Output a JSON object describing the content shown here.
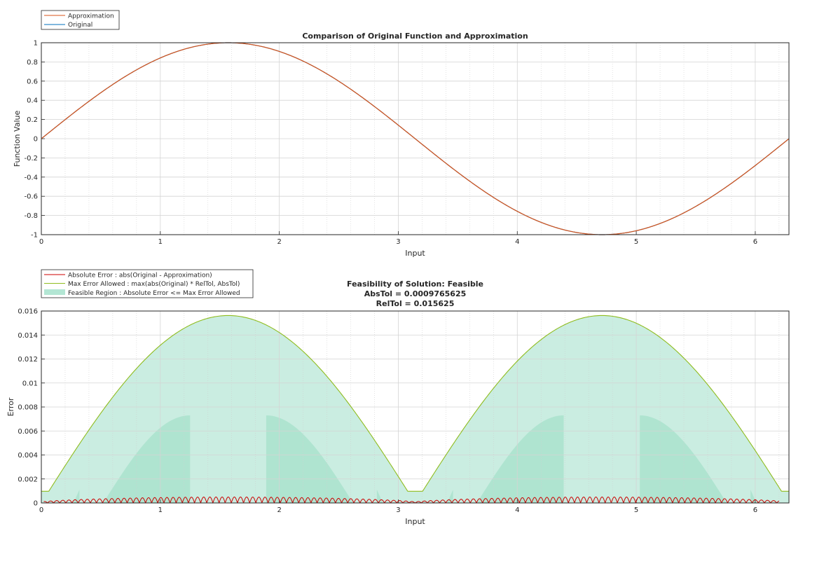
{
  "chart_data": [
    {
      "type": "line",
      "title": "Comparison of Original Function and Approximation",
      "xlabel": "Input",
      "ylabel": "Function Value",
      "xlim": [
        0,
        6.2832
      ],
      "ylim": [
        -1,
        1
      ],
      "xticks": [
        "0",
        "1",
        "2",
        "3",
        "4",
        "5",
        "6"
      ],
      "yticks": [
        "1",
        "0.8",
        "0.6",
        "0.4",
        "0.2",
        "0",
        "-0.2",
        "-0.4",
        "-0.6",
        "-0.8",
        "-1"
      ],
      "grid": true,
      "legend_position": "outside-top-left",
      "series": [
        {
          "name": "Approximation",
          "color": "#d95319",
          "function": "sin(x)",
          "x_range": [
            0,
            6.2832
          ]
        },
        {
          "name": "Original",
          "color": "#0072bd",
          "function": "sin(x)",
          "x_range": [
            0,
            6.2832
          ]
        }
      ]
    },
    {
      "type": "area",
      "title_lines": [
        "Feasibility of Solution: Feasible",
        "AbsTol = 0.0009765625",
        "RelTol = 0.015625"
      ],
      "xlabel": "Input",
      "ylabel": "Error",
      "xlim": [
        0,
        6.2832
      ],
      "ylim": [
        0,
        0.016
      ],
      "xticks": [
        "0",
        "1",
        "2",
        "3",
        "4",
        "5",
        "6"
      ],
      "yticks": [
        "0.016",
        "0.014",
        "0.012",
        "0.01",
        "0.008",
        "0.006",
        "0.004",
        "0.002",
        "0"
      ],
      "grid": true,
      "legend_position": "outside-top-left",
      "abs_tol": 0.0009765625,
      "rel_tol": 0.015625,
      "series": [
        {
          "name": "Absolute Error : abs(Original - Approximation)",
          "color": "#cc0000",
          "peak_error": 0.0005
        },
        {
          "name": "Max Error Allowed : max(abs(Original) * RelTol, AbsTol)",
          "color": "#8fbc1e"
        },
        {
          "name": "Feasible Region : Absolute Error <= Max Error Allowed",
          "color": "#b3e6d4"
        }
      ]
    }
  ]
}
